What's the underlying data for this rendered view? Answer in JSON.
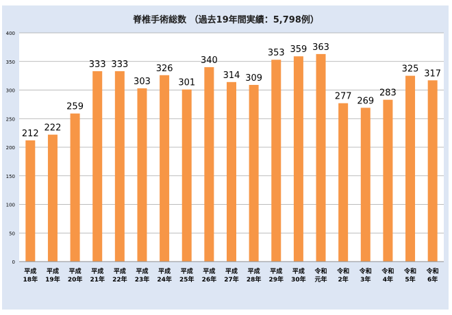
{
  "chart_data": {
    "type": "bar",
    "title": "脊椎手術総数 （過去19年間実績：5,798例）",
    "xlabel": "",
    "ylabel": "",
    "ylim": [
      0,
      400
    ],
    "yticks": [
      0,
      50,
      100,
      150,
      200,
      250,
      300,
      350,
      400
    ],
    "grid": true,
    "legend": "none",
    "categories": [
      [
        "平成",
        "18年"
      ],
      [
        "平成",
        "19年"
      ],
      [
        "平成",
        "20年"
      ],
      [
        "平成",
        "21年"
      ],
      [
        "平成",
        "22年"
      ],
      [
        "平成",
        "23年"
      ],
      [
        "平成",
        "24年"
      ],
      [
        "平成",
        "25年"
      ],
      [
        "平成",
        "26年"
      ],
      [
        "平成",
        "27年"
      ],
      [
        "平成",
        "28年"
      ],
      [
        "平成",
        "29年"
      ],
      [
        "平成",
        "30年"
      ],
      [
        "令和",
        "元年"
      ],
      [
        "令和",
        "2年"
      ],
      [
        "令和",
        "3年"
      ],
      [
        "令和",
        "4年"
      ],
      [
        "令和",
        "5年"
      ],
      [
        "令和",
        "6年"
      ]
    ],
    "series": [
      {
        "values": [
          212,
          222,
          259,
          333,
          333,
          303,
          326,
          301,
          340,
          314,
          309,
          353,
          359,
          363,
          277,
          269,
          283,
          325,
          317
        ],
        "color": "#f79646"
      }
    ],
    "colors": {
      "frame_background": "#dde6f4",
      "plot_background": "#ffffff",
      "gridline": "#a6a6a6",
      "axis": "#8c8c8c",
      "title_text": "#1f1f1f"
    }
  }
}
